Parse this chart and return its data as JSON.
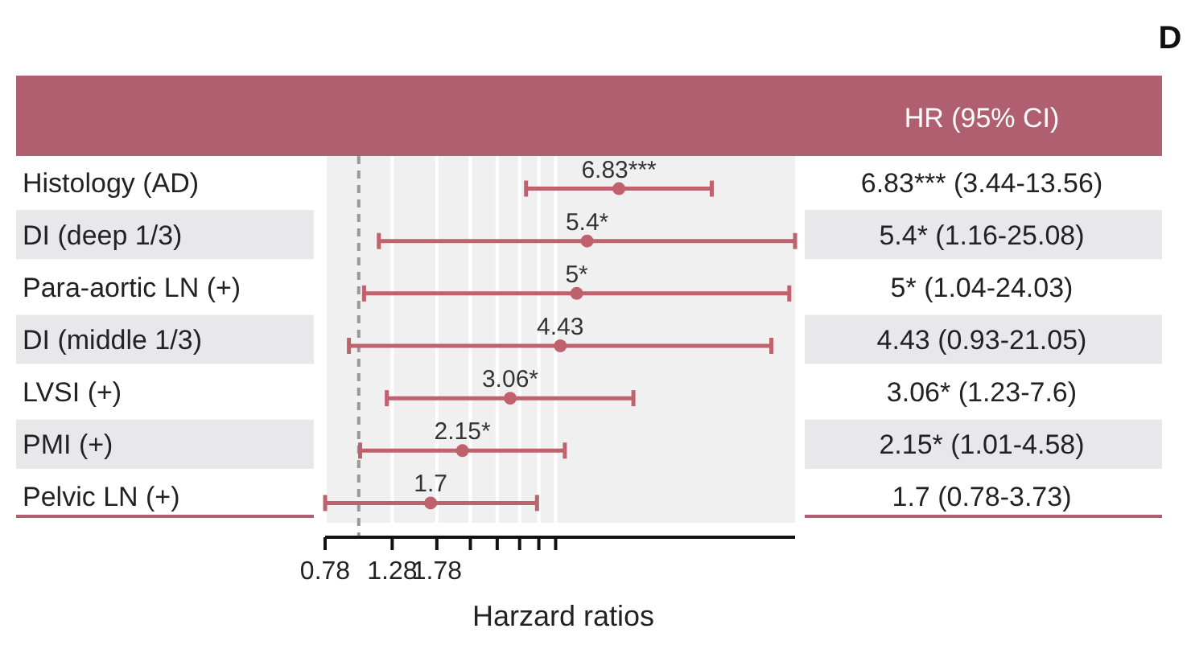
{
  "chart_data": {
    "type": "scatter",
    "orientation": "horizontal",
    "title": "D",
    "xlabel": "Harzard ratios",
    "y2label": "HR (95% CI)",
    "categories": [
      "Histology (AD)",
      "DI (deep 1/3)",
      "Para-aortic LN (+)",
      "DI (middle 1/3)",
      "LVSI (+)",
      "PMI (+)",
      "Pelvic LN (+)"
    ],
    "values": [
      6.83,
      5.4,
      5,
      4.43,
      3.06,
      2.15,
      1.7
    ],
    "errors": [
      [
        3.44,
        13.56
      ],
      [
        1.16,
        25.08
      ],
      [
        1.04,
        24.03
      ],
      [
        0.93,
        21.05
      ],
      [
        1.23,
        7.6
      ],
      [
        1.01,
        4.58
      ],
      [
        0.78,
        3.73
      ]
    ],
    "value_labels": [
      "6.83***",
      "5.4*",
      "5*",
      "4.43",
      "3.06*",
      "2.15*",
      "1.7"
    ],
    "annotations": [
      "6.83*** (3.44-13.56)",
      "5.4* (1.16-25.08)",
      "5* (1.04-24.03)",
      "4.43 (0.93-21.05)",
      "3.06* (1.23-7.6)",
      "2.15* (1.01-4.58)",
      "1.7 (0.78-3.73)"
    ],
    "color": "#c0616e",
    "marker": "circle",
    "log": "x",
    "grid": "x",
    "legend": false,
    "xlim": [
      0.78,
      25.08
    ],
    "xticks": [
      0.78,
      1.28,
      1.78,
      {
        "value": 2.28,
        "label": null
      },
      {
        "value": 2.78,
        "label": null
      },
      {
        "value": 3.28,
        "label": null
      },
      {
        "value": 3.78,
        "label": null
      },
      {
        "value": 4.28,
        "label": null
      }
    ],
    "ref_lines": [
      {
        "axis": "x",
        "value": 1,
        "line_style": "dashed",
        "color": "#999999"
      }
    ]
  }
}
